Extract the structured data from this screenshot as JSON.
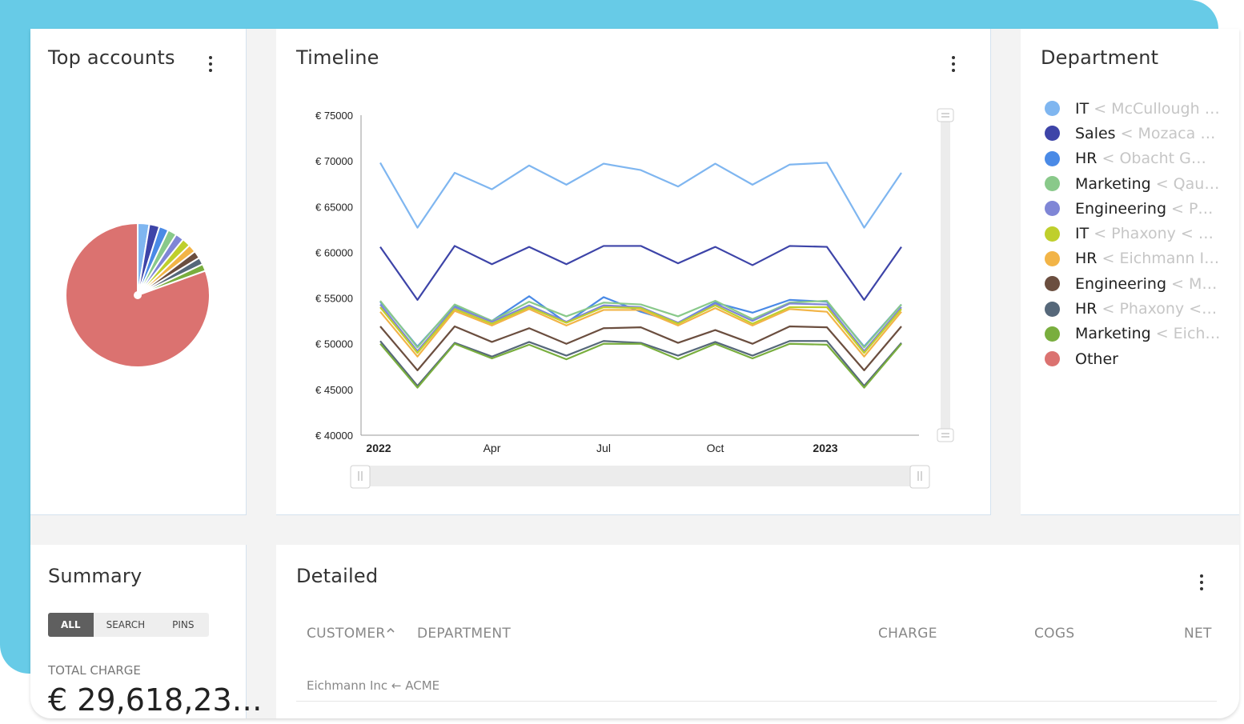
{
  "cards": {
    "top_accounts": {
      "title": "Top accounts"
    },
    "timeline": {
      "title": "Timeline"
    },
    "department": {
      "title": "Department"
    },
    "summary": {
      "title": "Summary",
      "total_label": "TOTAL CHARGE",
      "total_value": "€ 29,618,23…"
    },
    "detailed": {
      "title": "Detailed"
    }
  },
  "summary_filter": {
    "options": [
      "ALL",
      "SEARCH",
      "PINS"
    ],
    "selected": "ALL"
  },
  "legend": [
    {
      "dept": "IT",
      "acct": "< McCullough I…",
      "color": "#7fb6f0"
    },
    {
      "dept": "Sales",
      "acct": "< Mozaca G…",
      "color": "#3d44a8"
    },
    {
      "dept": "HR",
      "acct": "< Obacht Gmb…",
      "color": "#4a8ae6"
    },
    {
      "dept": "Marketing",
      "acct": "< Qaus…",
      "color": "#89c98a"
    },
    {
      "dept": "Engineering",
      "acct": "< Pha…",
      "color": "#7f86d6"
    },
    {
      "dept": "IT",
      "acct": "< Phaxony < AC…",
      "color": "#bfcf2c"
    },
    {
      "dept": "HR",
      "acct": "< Eichmann In…",
      "color": "#f2b447"
    },
    {
      "dept": "Engineering",
      "acct": "< Moz…",
      "color": "#6b4e3f"
    },
    {
      "dept": "HR",
      "acct": "< Phaxony < A…",
      "color": "#56687a"
    },
    {
      "dept": "Marketing",
      "acct": "< Eich…",
      "color": "#79ae3e"
    },
    {
      "dept": "Other",
      "acct": "",
      "color": "#db7270"
    }
  ],
  "pie_data": {
    "type": "pie",
    "slices": [
      {
        "label": "IT < McCullough I…",
        "value": 2.6,
        "color": "#7fb6f0"
      },
      {
        "label": "Sales < Mozaca G…",
        "value": 2.3,
        "color": "#3d44a8"
      },
      {
        "label": "HR < Obacht Gmb…",
        "value": 2.1,
        "color": "#4a8ae6"
      },
      {
        "label": "Marketing < Qaus…",
        "value": 2.0,
        "color": "#89c98a"
      },
      {
        "label": "Engineering < Pha…",
        "value": 1.9,
        "color": "#7f86d6"
      },
      {
        "label": "IT < Phaxony < AC…",
        "value": 1.9,
        "color": "#bfcf2c"
      },
      {
        "label": "HR < Eichmann In…",
        "value": 1.8,
        "color": "#f2b447"
      },
      {
        "label": "Engineering < Moz…",
        "value": 1.7,
        "color": "#6b4e3f"
      },
      {
        "label": "HR < Phaxony < A…",
        "value": 1.6,
        "color": "#56687a"
      },
      {
        "label": "Marketing < Eich…",
        "value": 1.6,
        "color": "#79ae3e"
      },
      {
        "label": "Other",
        "value": 80.5,
        "color": "#db7270"
      }
    ]
  },
  "chart_data": {
    "type": "line",
    "ylim": [
      40000,
      75000
    ],
    "yticks": [
      40000,
      45000,
      50000,
      55000,
      60000,
      65000,
      70000,
      75000
    ],
    "ytick_labels": [
      "€ 40000",
      "€ 45000",
      "€ 50000",
      "€ 55000",
      "€ 60000",
      "€ 65000",
      "€ 70000",
      "€ 75000"
    ],
    "x": [
      "2022-01",
      "2022-02",
      "2022-03",
      "2022-04",
      "2022-05",
      "2022-06",
      "2022-07",
      "2022-08",
      "2022-09",
      "2022-10",
      "2022-11",
      "2022-12",
      "2023-01",
      "2023-02",
      "2023-03"
    ],
    "xtick_labels": [
      {
        "x": "2022-01",
        "label": "2022",
        "bold": true
      },
      {
        "x": "2022-04",
        "label": "Apr",
        "bold": false
      },
      {
        "x": "2022-07",
        "label": "Jul",
        "bold": false
      },
      {
        "x": "2022-10",
        "label": "Oct",
        "bold": false
      },
      {
        "x": "2023-01",
        "label": "2023",
        "bold": true
      }
    ],
    "series": [
      {
        "color": "#7fb6f0",
        "values": [
          69800,
          62700,
          68700,
          66900,
          69500,
          67400,
          69700,
          69000,
          67200,
          69700,
          67400,
          69600,
          69800,
          62700,
          68700
        ]
      },
      {
        "color": "#3d44a8",
        "values": [
          60600,
          54800,
          60700,
          58700,
          60600,
          58700,
          60700,
          60700,
          58800,
          60600,
          58600,
          60700,
          60600,
          54800,
          60600
        ]
      },
      {
        "color": "#4a8ae6",
        "values": [
          54600,
          49700,
          54200,
          52500,
          55200,
          52300,
          55100,
          53500,
          52300,
          54500,
          53400,
          54800,
          54600,
          49700,
          54300
        ]
      },
      {
        "color": "#89c98a",
        "values": [
          54700,
          49600,
          54300,
          52500,
          54600,
          53000,
          54500,
          54300,
          53000,
          54700,
          52700,
          54500,
          54700,
          49600,
          54300
        ]
      },
      {
        "color": "#7f86d6",
        "values": [
          54300,
          49200,
          54000,
          52400,
          54200,
          52400,
          54200,
          54000,
          52300,
          54400,
          52500,
          54400,
          54300,
          49200,
          54000
        ]
      },
      {
        "color": "#bfcf2c",
        "values": [
          54000,
          49000,
          53800,
          52200,
          54000,
          52300,
          54000,
          53900,
          52200,
          54200,
          52200,
          54000,
          54000,
          49000,
          53800
        ]
      },
      {
        "color": "#f2b447",
        "values": [
          53500,
          48600,
          53600,
          52000,
          53800,
          52000,
          53700,
          53700,
          52000,
          53900,
          52000,
          53800,
          53500,
          48600,
          53500
        ]
      },
      {
        "color": "#6b4e3f",
        "values": [
          51900,
          47100,
          51900,
          50200,
          51700,
          50000,
          51700,
          51800,
          50100,
          51500,
          50000,
          51900,
          51800,
          47100,
          51900
        ]
      },
      {
        "color": "#56687a",
        "values": [
          50300,
          45400,
          50100,
          48600,
          50200,
          48700,
          50300,
          50100,
          48700,
          50200,
          48700,
          50300,
          50300,
          45400,
          50100
        ]
      },
      {
        "color": "#79ae3e",
        "values": [
          50000,
          45200,
          50000,
          48400,
          49900,
          48300,
          50000,
          50000,
          48300,
          50000,
          48400,
          50000,
          49900,
          45200,
          50000
        ]
      }
    ]
  },
  "table": {
    "columns": [
      "CUSTOMER",
      "DEPARTMENT",
      "CHARGE",
      "COGS",
      "NET"
    ],
    "sort_icon": "sort-ascending-icon",
    "rows": [
      {
        "customer": "Eichmann Inc ← ACME"
      }
    ]
  }
}
